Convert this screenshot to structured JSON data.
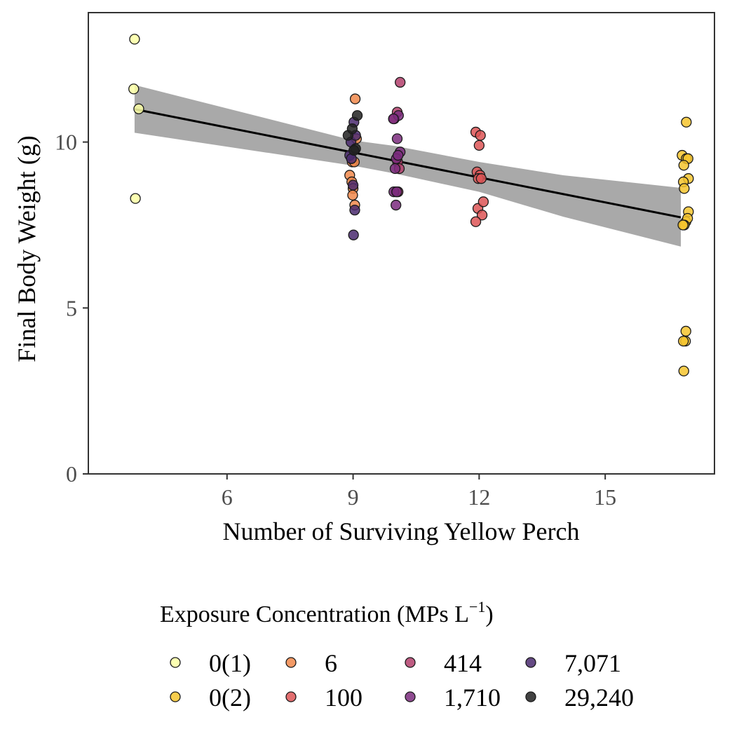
{
  "chart_data": {
    "type": "scatter",
    "xlabel": "Number of Surviving Yellow Perch",
    "ylabel": "Final Body Weight (g)",
    "xlim": [
      2.7,
      17.6
    ],
    "ylim": [
      0,
      13.9
    ],
    "xticks": [
      6,
      9,
      12,
      15
    ],
    "yticks": [
      0,
      5,
      10
    ],
    "xtick_labels": [
      "6",
      "9",
      "12",
      "15"
    ],
    "ytick_labels": [
      "0",
      "5",
      "10"
    ],
    "grid": false,
    "legend_position": "bottom",
    "legend_title": {
      "main": "Exposure Concentration (MPs L",
      "superscript": "−1",
      "close": ")"
    },
    "trend": {
      "type": "linear fit with confidence band",
      "line": [
        [
          3.8,
          10.99
        ],
        [
          16.8,
          7.73
        ]
      ],
      "band_lower": [
        [
          3.8,
          10.28
        ],
        [
          9.0,
          9.29
        ],
        [
          10.0,
          9.05
        ],
        [
          12.0,
          8.5
        ],
        [
          14.0,
          7.75
        ],
        [
          16.8,
          6.85
        ]
      ],
      "band_upper": [
        [
          3.8,
          11.72
        ],
        [
          9.0,
          10.05
        ],
        [
          10.0,
          9.88
        ],
        [
          12.0,
          9.4
        ],
        [
          14.0,
          9.0
        ],
        [
          16.8,
          8.62
        ]
      ],
      "line_color": "#000000",
      "band_color": "#a9a9a9"
    },
    "series": [
      {
        "name": "0(1)",
        "color": "#fcffa4",
        "x": [
          3.8,
          3.78,
          3.9,
          3.82
        ],
        "y": [
          13.1,
          11.6,
          11.0,
          8.3
        ]
      },
      {
        "name": "0(2)",
        "color": "#f6c42e",
        "x": [
          16.93,
          16.83,
          16.93,
          16.97,
          16.98,
          16.87,
          16.86,
          16.88,
          16.92,
          16.98,
          16.96,
          16.88,
          16.92,
          16.91,
          16.86,
          16.87,
          16.85
        ],
        "y": [
          10.6,
          9.6,
          9.5,
          9.5,
          8.9,
          9.3,
          8.8,
          8.6,
          7.6,
          7.9,
          7.7,
          7.5,
          4.3,
          4.0,
          4.0,
          3.1,
          7.5
        ]
      },
      {
        "name": "6",
        "color": "#f1884b",
        "x": [
          9.05,
          9.08,
          8.98,
          9.03,
          8.92,
          8.97,
          9.0,
          9.04,
          8.99
        ],
        "y": [
          11.3,
          10.1,
          9.4,
          9.4,
          9.0,
          8.8,
          8.6,
          8.1,
          8.4
        ]
      },
      {
        "name": "100",
        "color": "#dd5556",
        "x": [
          11.92,
          12.03,
          12.0,
          11.95,
          12.02,
          11.98,
          12.05,
          11.97,
          12.07,
          12.1,
          11.92
        ],
        "y": [
          10.3,
          10.2,
          9.9,
          9.1,
          9.0,
          8.9,
          8.9,
          8.0,
          7.8,
          8.2,
          7.6
        ]
      },
      {
        "name": "414",
        "color": "#b33f6c",
        "x": [
          10.12,
          10.05,
          9.98,
          10.06,
          10.1,
          10.02,
          10.07
        ],
        "y": [
          11.8,
          10.9,
          10.7,
          9.4,
          9.2,
          8.5,
          8.5
        ]
      },
      {
        "name": "1,710",
        "color": "#7b2b7e",
        "x": [
          10.08,
          9.96,
          10.05,
          10.12,
          10.03,
          10.07,
          10.0,
          10.02,
          9.97,
          10.04
        ],
        "y": [
          10.8,
          10.7,
          10.1,
          9.7,
          9.5,
          9.6,
          9.2,
          8.1,
          8.5,
          8.5
        ]
      },
      {
        "name": "7,071",
        "color": "#4a2a6e",
        "x": [
          9.02,
          8.95,
          8.92,
          9.06,
          9.0,
          9.04,
          9.01,
          8.96
        ],
        "y": [
          10.6,
          10.0,
          9.6,
          10.2,
          8.7,
          7.95,
          7.2,
          9.5
        ]
      },
      {
        "name": "29,240",
        "color": "#212121",
        "x": [
          9.1,
          8.88,
          9.06,
          9.02,
          8.98
        ],
        "y": [
          10.8,
          10.2,
          9.8,
          9.75,
          10.4
        ]
      }
    ]
  }
}
